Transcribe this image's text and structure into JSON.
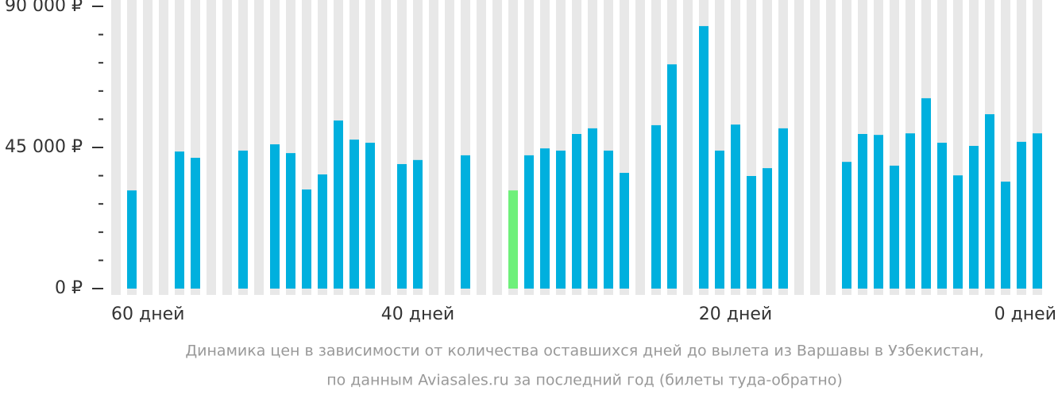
{
  "chart_data": {
    "type": "bar",
    "categories": [
      "60 дней",
      null,
      null,
      null,
      null,
      null,
      null,
      null,
      null,
      null,
      null,
      null,
      null,
      null,
      null,
      null,
      null,
      null,
      null,
      "40 дней",
      null,
      null,
      null,
      null,
      null,
      null,
      null,
      null,
      null,
      null,
      null,
      null,
      null,
      null,
      null,
      null,
      null,
      null,
      null,
      "20 дней",
      null,
      null,
      null,
      null,
      null,
      null,
      null,
      null,
      null,
      null,
      null,
      null,
      null,
      null,
      null,
      null,
      null,
      null,
      "0 дней"
    ],
    "values": [
      null,
      31300,
      null,
      null,
      43700,
      41700,
      null,
      null,
      44000,
      null,
      46000,
      43200,
      31600,
      36400,
      53600,
      47500,
      46500,
      null,
      39700,
      41000,
      null,
      null,
      42500,
      null,
      null,
      31300,
      42500,
      44700,
      44000,
      49300,
      51100,
      44000,
      36900,
      null,
      52100,
      71500,
      null,
      83700,
      44000,
      52300,
      35900,
      38400,
      51100,
      null,
      null,
      null,
      40400,
      49300,
      49000,
      39200,
      49500,
      60700,
      46500,
      36100,
      45500,
      55600,
      34100,
      46800,
      49500
    ],
    "colors": [
      "#00b0de",
      "#00b0de",
      "#00b0de",
      "#00b0de",
      "#00b0de",
      "#00b0de",
      "#00b0de",
      "#00b0de",
      "#00b0de",
      "#00b0de",
      "#00b0de",
      "#00b0de",
      "#00b0de",
      "#00b0de",
      "#00b0de",
      "#00b0de",
      "#00b0de",
      "#00b0de",
      "#00b0de",
      "#00b0de",
      "#00b0de",
      "#00b0de",
      "#00b0de",
      "#00b0de",
      "#00b0de",
      "#6ef07a",
      "#00b0de",
      "#00b0de",
      "#00b0de",
      "#00b0de",
      "#00b0de",
      "#00b0de",
      "#00b0de",
      "#00b0de",
      "#00b0de",
      "#00b0de",
      "#00b0de",
      "#00b0de",
      "#00b0de",
      "#00b0de",
      "#00b0de",
      "#00b0de",
      "#00b0de",
      "#00b0de",
      "#00b0de",
      "#00b0de",
      "#00b0de",
      "#00b0de",
      "#00b0de",
      "#00b0de",
      "#00b0de",
      "#00b0de",
      "#00b0de",
      "#00b0de",
      "#00b0de",
      "#00b0de",
      "#00b0de",
      "#00b0de",
      "#00b0de"
    ],
    "background_color": "#e8e8e8",
    "ylim": [
      0,
      90000
    ],
    "yticks": [
      {
        "value": 0,
        "label": "0 ₽"
      },
      {
        "value": 45000,
        "label": "45 000 ₽"
      },
      {
        "value": 90000,
        "label": "90 000 ₽"
      }
    ],
    "minor_yticks": [
      9000,
      18000,
      27000,
      36000,
      54000,
      63000,
      72000,
      81000
    ],
    "caption": [
      "Динамика цен в зависимости от количества оставшихся дней до вылета из Варшавы в Узбекистан,",
      "по данным Aviasales.ru за последний год (билеты туда-обратно)"
    ]
  }
}
